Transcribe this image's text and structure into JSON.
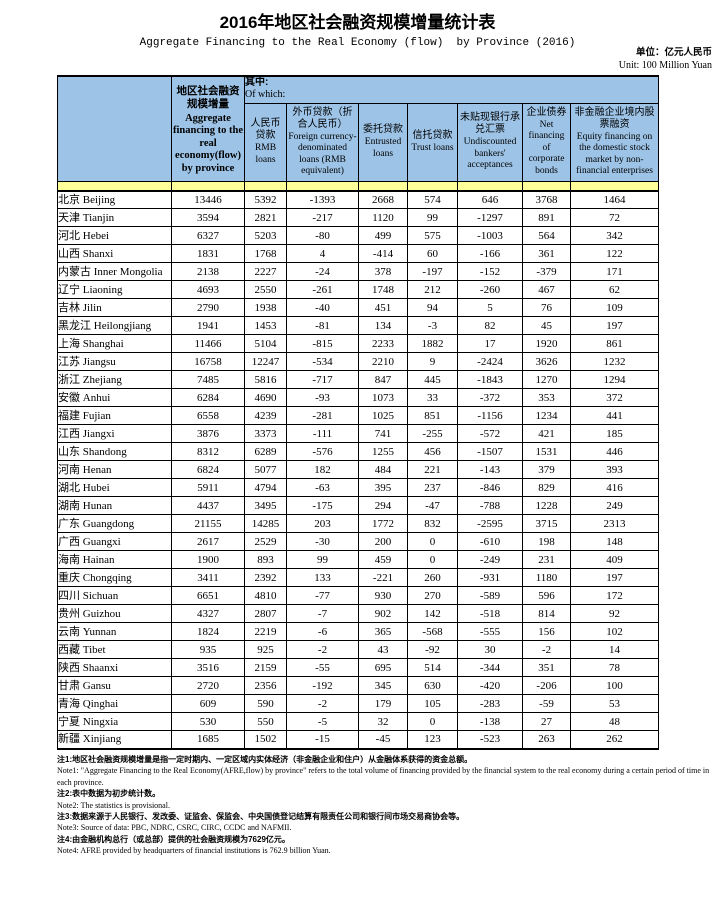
{
  "title": "2016年地区社会融资规模增量统计表",
  "subtitle": "Aggregate Financing to the Real Economy (flow)  by Province (2016)",
  "unit_cn": "单位：亿元人民币",
  "unit_en": "Unit: 100 Million Yuan",
  "colors": {
    "header_blue": "#9DC3E6",
    "band_yellow": "#FFFF99"
  },
  "table": {
    "afre_header_cn": "地区社会融资规模增量",
    "afre_header_en": "Aggregate financing to the real economy(flow) by province",
    "of_which_cn": "其中:",
    "of_which_en": "Of which:",
    "columns": [
      {
        "cn": "人民币贷款",
        "en": "RMB loans"
      },
      {
        "cn": "外币贷款（折合人民币）",
        "en": "Foreign currency-denominated loans (RMB equivalent)"
      },
      {
        "cn": "委托贷款",
        "en": "Entrusted loans"
      },
      {
        "cn": "信托贷款",
        "en": "Trust loans"
      },
      {
        "cn": "未贴现银行承兑汇票",
        "en": "Undiscounted bankers' acceptances"
      },
      {
        "cn": "企业债券",
        "en": "Net financing of corporate bonds"
      },
      {
        "cn": "非金融企业境内股票融资",
        "en": "Equity financing on the domestic stock market by non-financial enterprises"
      }
    ],
    "rows": [
      {
        "cn": "北京",
        "en": "Beijing",
        "values": [
          13446,
          5392,
          -1393,
          2668,
          574,
          646,
          3768,
          1464
        ]
      },
      {
        "cn": "天津",
        "en": "Tianjin",
        "values": [
          3594,
          2821,
          -217,
          1120,
          99,
          -1297,
          891,
          72
        ]
      },
      {
        "cn": "河北",
        "en": "Hebei",
        "values": [
          6327,
          5203,
          -80,
          499,
          575,
          -1003,
          564,
          342
        ]
      },
      {
        "cn": "山西",
        "en": "Shanxi",
        "values": [
          1831,
          1768,
          4,
          -414,
          60,
          -166,
          361,
          122
        ]
      },
      {
        "cn": "内蒙古",
        "en": "Inner Mongolia",
        "values": [
          2138,
          2227,
          -24,
          378,
          -197,
          -152,
          -379,
          171
        ]
      },
      {
        "cn": "辽宁",
        "en": "Liaoning",
        "values": [
          4693,
          2550,
          -261,
          1748,
          212,
          -260,
          467,
          62
        ]
      },
      {
        "cn": "吉林",
        "en": "Jilin",
        "values": [
          2790,
          1938,
          -40,
          451,
          94,
          5,
          76,
          109
        ]
      },
      {
        "cn": "黑龙江",
        "en": "Heilongjiang",
        "values": [
          1941,
          1453,
          -81,
          134,
          -3,
          82,
          45,
          197
        ]
      },
      {
        "cn": "上海",
        "en": "Shanghai",
        "values": [
          11466,
          5104,
          -815,
          2233,
          1882,
          17,
          1920,
          861
        ]
      },
      {
        "cn": "江苏",
        "en": "Jiangsu",
        "values": [
          16758,
          12247,
          -534,
          2210,
          9,
          -2424,
          3626,
          1232
        ]
      },
      {
        "cn": "浙江",
        "en": "Zhejiang",
        "values": [
          7485,
          5816,
          -717,
          847,
          445,
          -1843,
          1270,
          1294
        ]
      },
      {
        "cn": "安徽",
        "en": "Anhui",
        "values": [
          6284,
          4690,
          -93,
          1073,
          33,
          -372,
          353,
          372
        ]
      },
      {
        "cn": "福建",
        "en": "Fujian",
        "values": [
          6558,
          4239,
          -281,
          1025,
          851,
          -1156,
          1234,
          441
        ]
      },
      {
        "cn": "江西",
        "en": "Jiangxi",
        "values": [
          3876,
          3373,
          -111,
          741,
          -255,
          -572,
          421,
          185
        ]
      },
      {
        "cn": "山东",
        "en": "Shandong",
        "values": [
          8312,
          6289,
          -576,
          1255,
          456,
          -1507,
          1531,
          446
        ]
      },
      {
        "cn": "河南",
        "en": "Henan",
        "values": [
          6824,
          5077,
          182,
          484,
          221,
          -143,
          379,
          393
        ]
      },
      {
        "cn": "湖北",
        "en": "Hubei",
        "values": [
          5911,
          4794,
          -63,
          395,
          237,
          -846,
          829,
          416
        ]
      },
      {
        "cn": "湖南",
        "en": "Hunan",
        "values": [
          4437,
          3495,
          -175,
          294,
          -47,
          -788,
          1228,
          249
        ]
      },
      {
        "cn": "广东",
        "en": "Guangdong",
        "values": [
          21155,
          14285,
          203,
          1772,
          832,
          -2595,
          3715,
          2313
        ]
      },
      {
        "cn": "广西",
        "en": "Guangxi",
        "values": [
          2617,
          2529,
          -30,
          200,
          0,
          -610,
          198,
          148
        ]
      },
      {
        "cn": "海南",
        "en": "Hainan",
        "values": [
          1900,
          893,
          99,
          459,
          0,
          -249,
          231,
          409
        ]
      },
      {
        "cn": "重庆",
        "en": "Chongqing",
        "values": [
          3411,
          2392,
          133,
          -221,
          260,
          -931,
          1180,
          197
        ]
      },
      {
        "cn": "四川",
        "en": "Sichuan",
        "values": [
          6651,
          4810,
          -77,
          930,
          270,
          -589,
          596,
          172
        ]
      },
      {
        "cn": "贵州",
        "en": "Guizhou",
        "values": [
          4327,
          2807,
          -7,
          902,
          142,
          -518,
          814,
          92
        ]
      },
      {
        "cn": "云南",
        "en": "Yunnan",
        "values": [
          1824,
          2219,
          -6,
          365,
          -568,
          -555,
          156,
          102
        ]
      },
      {
        "cn": "西藏",
        "en": "Tibet",
        "values": [
          935,
          925,
          -2,
          43,
          -92,
          30,
          -2,
          14
        ]
      },
      {
        "cn": "陕西",
        "en": "Shaanxi",
        "values": [
          3516,
          2159,
          -55,
          695,
          514,
          -344,
          351,
          78
        ]
      },
      {
        "cn": "甘肃",
        "en": "Gansu",
        "values": [
          2720,
          2356,
          -192,
          345,
          630,
          -420,
          -206,
          100
        ]
      },
      {
        "cn": "青海",
        "en": "Qinghai",
        "values": [
          609,
          590,
          -2,
          179,
          105,
          -283,
          -59,
          53
        ]
      },
      {
        "cn": "宁夏",
        "en": "Ningxia",
        "values": [
          530,
          550,
          -5,
          32,
          0,
          -138,
          27,
          48
        ]
      },
      {
        "cn": "新疆",
        "en": "Xinjiang",
        "values": [
          1685,
          1502,
          -15,
          -45,
          123,
          -523,
          263,
          262
        ]
      }
    ]
  },
  "notes": [
    {
      "type": "cn",
      "text": "注1:地区社会融资规模增量是指一定时期内、一定区域内实体经济（非金融企业和住户）从金融体系获得的资金总额。"
    },
    {
      "type": "en",
      "text": "Note1: \"Aggregate Financing to the Real Economy(AFRE,flow) by province\" refers to the total volume of financing provided by the financial system to the real economy during a certain period of time in each province."
    },
    {
      "type": "cn",
      "text": "注2:表中数据为初步统计数。"
    },
    {
      "type": "en",
      "text": "Note2: The statistics is provisional."
    },
    {
      "type": "cn",
      "text": "注3:数据来源于人民银行、发改委、证监会、保监会、中央国债登记结算有限责任公司和银行间市场交易商协会等。"
    },
    {
      "type": "en",
      "text": "Note3: Source of data: PBC, NDRC, CSRC, CIRC, CCDC and NAFMII."
    },
    {
      "type": "cn",
      "text": "注4:由金融机构总行（或总部）提供的社会融资规模为7629亿元。"
    },
    {
      "type": "en",
      "text": "Note4: AFRE provided by headquarters of financial institutions is 762.9 billion Yuan."
    }
  ]
}
